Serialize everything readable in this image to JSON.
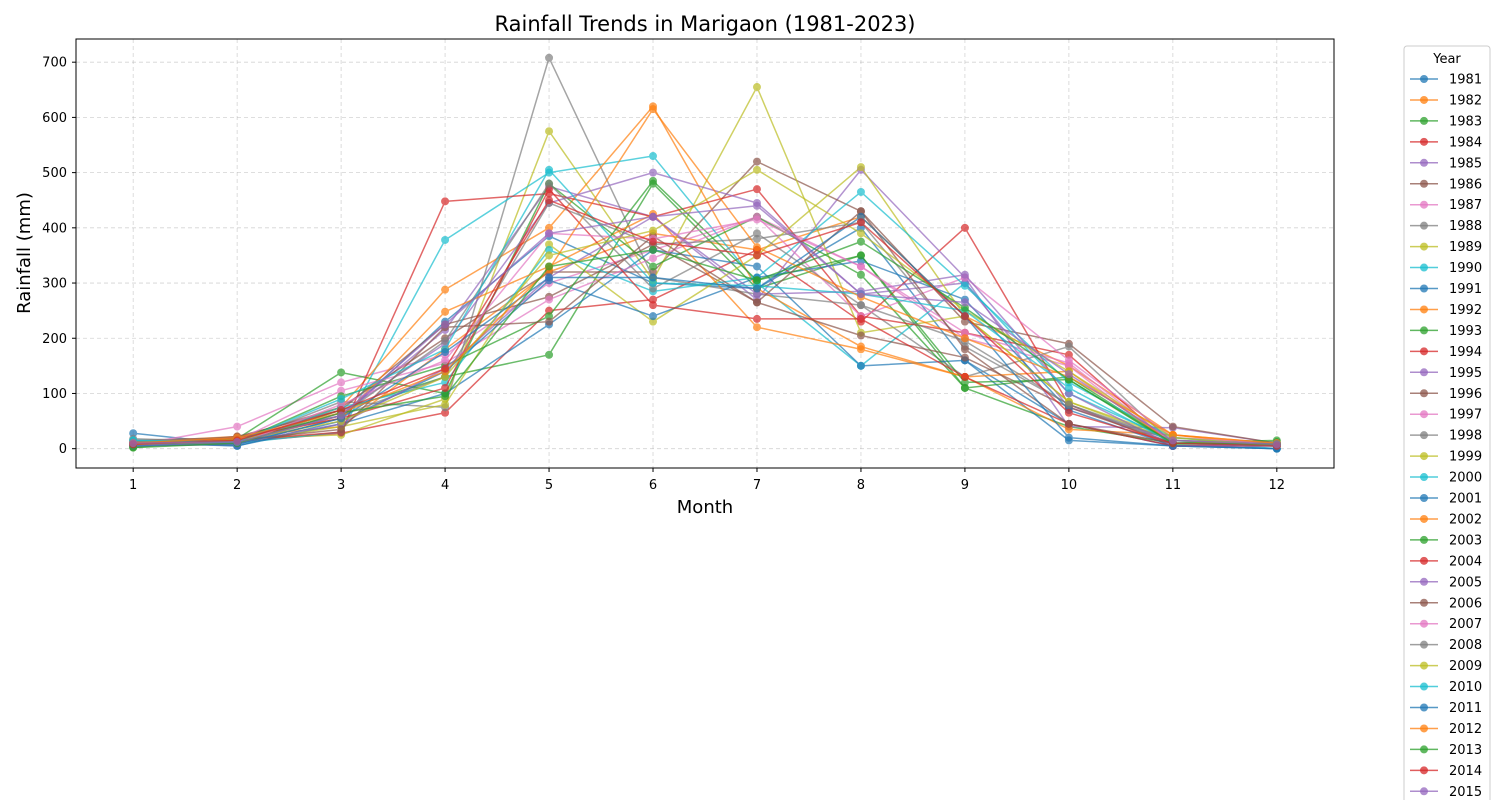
{
  "chart_data": {
    "type": "line",
    "title": "Rainfall Trends in Marigaon (1981-2023)",
    "xlabel": "Month",
    "ylabel": "Rainfall (mm)",
    "x": [
      1,
      2,
      3,
      4,
      5,
      6,
      7,
      8,
      9,
      10,
      11,
      12
    ],
    "xlim": [
      0.45,
      12.55
    ],
    "ylim": [
      -35,
      742
    ],
    "yticks": [
      0,
      100,
      200,
      300,
      400,
      500,
      600,
      700
    ],
    "grid": true,
    "legend_title": "Year",
    "legend_position": "outside-right",
    "colors": [
      "#1f77b4",
      "#ff7f0e",
      "#2ca02c",
      "#d62728",
      "#9467bd",
      "#8c564b",
      "#e377c2",
      "#7f7f7f",
      "#bcbd22",
      "#17becf"
    ],
    "series": [
      {
        "name": "1981",
        "values": [
          28,
          8,
          55,
          230,
          385,
          300,
          290,
          400,
          160,
          45,
          5,
          5
        ]
      },
      {
        "name": "1982",
        "values": [
          12,
          22,
          40,
          180,
          320,
          390,
          360,
          420,
          240,
          150,
          25,
          10
        ]
      },
      {
        "name": "1983",
        "values": [
          5,
          10,
          70,
          130,
          170,
          480,
          290,
          350,
          110,
          40,
          10,
          12
        ]
      },
      {
        "name": "1984",
        "values": [
          10,
          12,
          28,
          65,
          250,
          270,
          360,
          230,
          400,
          80,
          5,
          8
        ]
      },
      {
        "name": "1985",
        "values": [
          8,
          15,
          60,
          215,
          475,
          420,
          270,
          505,
          310,
          40,
          38,
          10
        ]
      },
      {
        "name": "1986",
        "values": [
          15,
          20,
          75,
          200,
          320,
          320,
          520,
          430,
          230,
          190,
          40,
          10
        ]
      },
      {
        "name": "1987",
        "values": [
          6,
          40,
          120,
          170,
          300,
          360,
          420,
          330,
          200,
          150,
          5,
          8
        ]
      },
      {
        "name": "1988",
        "values": [
          18,
          12,
          85,
          75,
          708,
          310,
          280,
          260,
          130,
          185,
          10,
          5
        ]
      },
      {
        "name": "1989",
        "values": [
          10,
          18,
          25,
          90,
          575,
          305,
          655,
          210,
          240,
          85,
          20,
          8
        ]
      },
      {
        "name": "1990",
        "values": [
          8,
          10,
          30,
          378,
          500,
          530,
          300,
          150,
          300,
          100,
          15,
          0
        ]
      },
      {
        "name": "1991",
        "values": [
          12,
          5,
          45,
          100,
          225,
          360,
          330,
          150,
          160,
          15,
          5,
          0
        ]
      },
      {
        "name": "1992",
        "values": [
          4,
          12,
          75,
          288,
          400,
          620,
          290,
          185,
          130,
          35,
          25,
          5
        ]
      },
      {
        "name": "1993",
        "values": [
          2,
          18,
          138,
          100,
          480,
          330,
          420,
          315,
          110,
          130,
          10,
          15
        ]
      },
      {
        "name": "1994",
        "values": [
          10,
          15,
          30,
          448,
          462,
          420,
          470,
          240,
          210,
          170,
          5,
          5
        ]
      },
      {
        "name": "1995",
        "values": [
          5,
          8,
          65,
          190,
          445,
          500,
          445,
          280,
          300,
          75,
          15,
          10
        ]
      },
      {
        "name": "1996",
        "values": [
          8,
          22,
          70,
          225,
          275,
          370,
          265,
          205,
          165,
          75,
          10,
          5
        ]
      },
      {
        "name": "1997",
        "values": [
          10,
          15,
          105,
          155,
          270,
          345,
          420,
          240,
          310,
          160,
          20,
          10
        ]
      },
      {
        "name": "1998",
        "values": [
          5,
          10,
          60,
          130,
          445,
          370,
          380,
          410,
          185,
          80,
          10,
          5
        ]
      },
      {
        "name": "1999",
        "values": [
          8,
          12,
          40,
          80,
          370,
          230,
          350,
          510,
          240,
          85,
          15,
          5
        ]
      },
      {
        "name": "2000",
        "values": [
          15,
          10,
          75,
          120,
          360,
          285,
          310,
          465,
          295,
          120,
          20,
          5
        ]
      },
      {
        "name": "2001",
        "values": [
          10,
          5,
          50,
          140,
          305,
          240,
          310,
          340,
          270,
          70,
          5,
          0
        ]
      },
      {
        "name": "2002",
        "values": [
          12,
          18,
          55,
          248,
          330,
          425,
          220,
          180,
          130,
          140,
          10,
          5
        ]
      },
      {
        "name": "2003",
        "values": [
          5,
          12,
          95,
          150,
          240,
          485,
          305,
          350,
          120,
          125,
          8,
          10
        ]
      },
      {
        "name": "2004",
        "values": [
          8,
          20,
          55,
          110,
          470,
          260,
          235,
          235,
          130,
          45,
          5,
          5
        ]
      },
      {
        "name": "2005",
        "values": [
          6,
          10,
          45,
          145,
          310,
          420,
          280,
          285,
          315,
          100,
          5,
          5
        ]
      },
      {
        "name": "2006",
        "values": [
          10,
          15,
          35,
          220,
          230,
          385,
          265,
          430,
          180,
          45,
          10,
          8
        ]
      },
      {
        "name": "2007",
        "values": [
          5,
          8,
          80,
          160,
          390,
          380,
          415,
          330,
          210,
          155,
          10,
          5
        ]
      },
      {
        "name": "2008",
        "values": [
          12,
          20,
          60,
          195,
          480,
          290,
          390,
          260,
          195,
          80,
          15,
          8
        ]
      },
      {
        "name": "2009",
        "values": [
          8,
          15,
          50,
          130,
          350,
          395,
          505,
          390,
          250,
          140,
          20,
          5
        ]
      },
      {
        "name": "2010",
        "values": [
          15,
          12,
          90,
          180,
          505,
          300,
          295,
          280,
          250,
          110,
          10,
          5
        ]
      },
      {
        "name": "2011",
        "values": [
          5,
          8,
          55,
          175,
          310,
          310,
          290,
          420,
          240,
          20,
          5,
          0
        ]
      },
      {
        "name": "2012",
        "values": [
          10,
          20,
          65,
          140,
          325,
          615,
          365,
          275,
          200,
          130,
          25,
          10
        ]
      },
      {
        "name": "2013",
        "values": [
          2,
          10,
          65,
          95,
          330,
          360,
          305,
          375,
          255,
          125,
          10,
          8
        ]
      },
      {
        "name": "2014",
        "values": [
          8,
          15,
          70,
          145,
          450,
          375,
          350,
          410,
          240,
          65,
          10,
          5
        ]
      },
      {
        "name": "2015",
        "values": [
          10,
          12,
          60,
          225,
          390,
          420,
          440,
          280,
          265,
          135,
          15,
          8
        ]
      }
    ]
  }
}
